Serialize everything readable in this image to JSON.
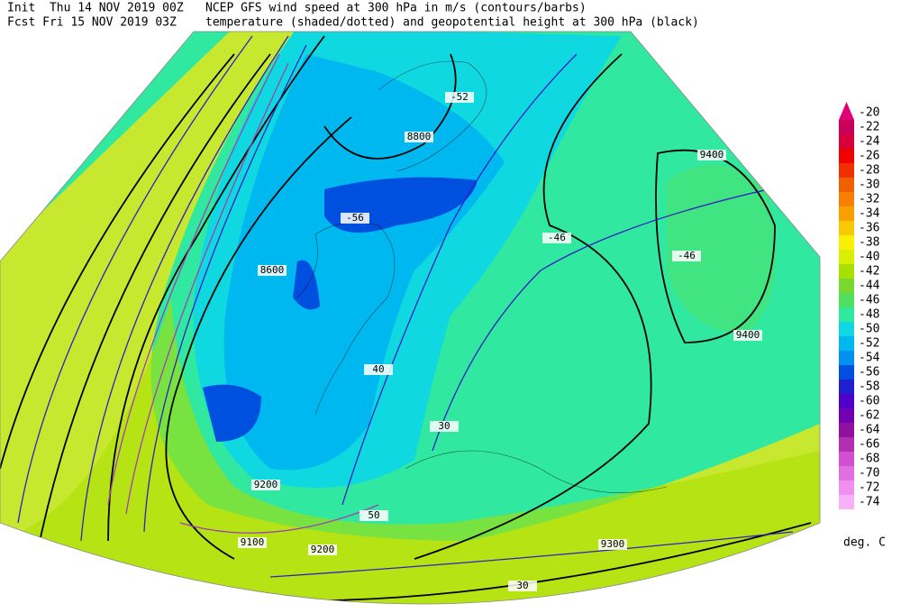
{
  "header": {
    "init": "Init  Thu 14 NOV 2019 00Z",
    "forecast": "Fcst Fri 15 NOV 2019 03Z",
    "title_line1": "NCEP GFS wind speed at 300 hPa in m/s (contours/barbs)",
    "title_line2": "temperature (shaded/dotted) and geopotential height at 300 hPa (black)"
  },
  "colorbar": {
    "unit": "deg. C",
    "values": [
      -20,
      -22,
      -24,
      -26,
      -28,
      -30,
      -32,
      -34,
      -36,
      -38,
      -40,
      -42,
      -44,
      -46,
      -48,
      -50,
      -52,
      -54,
      -56,
      -58,
      -60,
      -62,
      -64,
      -66,
      -68,
      -70,
      -72,
      -74
    ],
    "colors": [
      "#e0007a",
      "#c8005a",
      "#d8003a",
      "#f00000",
      "#f03000",
      "#f06000",
      "#f88000",
      "#f8a000",
      "#f8c800",
      "#f8f000",
      "#d8f000",
      "#a8e000",
      "#78d830",
      "#50e060",
      "#30e8a0",
      "#10d8e0",
      "#00b8f0",
      "#0090f0",
      "#0050e0",
      "#2020d0",
      "#5000c8",
      "#7000b0",
      "#9010a0",
      "#b030b0",
      "#d050d0",
      "#e070e0",
      "#f090f0",
      "#f8b0f8"
    ]
  },
  "map_labels": [
    "9400",
    "9400",
    "9300",
    "9200",
    "9100",
    "8800",
    "8600",
    "9200",
    "30",
    "40",
    "50",
    "30",
    "-46",
    "-52",
    "-56",
    "-46"
  ]
}
